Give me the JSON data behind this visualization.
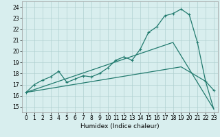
{
  "bg_color": "#d8eeee",
  "grid_color": "#b0d0d0",
  "line_color": "#217a6e",
  "xlim": [
    -0.5,
    23.5
  ],
  "ylim": [
    14.5,
    24.5
  ],
  "xticks": [
    0,
    1,
    2,
    3,
    4,
    5,
    6,
    7,
    8,
    9,
    10,
    11,
    12,
    13,
    14,
    15,
    16,
    17,
    18,
    19,
    20,
    21,
    22,
    23
  ],
  "yticks": [
    15,
    16,
    17,
    18,
    19,
    20,
    21,
    22,
    23,
    24
  ],
  "xlabel": "Humidex (Indice chaleur)",
  "curve1_x": [
    0,
    1,
    2,
    3,
    4,
    5,
    6,
    7,
    8,
    9,
    10,
    11,
    12,
    13,
    14,
    15,
    16,
    17,
    18,
    19,
    20,
    21,
    22,
    23
  ],
  "curve1_y": [
    16.3,
    17.0,
    17.4,
    17.7,
    18.2,
    17.2,
    17.5,
    17.8,
    17.7,
    18.0,
    18.5,
    19.2,
    19.5,
    19.2,
    20.2,
    21.7,
    22.2,
    23.2,
    23.4,
    23.8,
    23.3,
    20.8,
    17.3,
    16.5
  ],
  "line2_x": [
    0,
    18,
    23
  ],
  "line2_y": [
    16.3,
    20.8,
    14.8
  ],
  "line3_x": [
    0,
    19,
    22,
    23
  ],
  "line3_y": [
    16.3,
    18.6,
    17.3,
    14.8
  ]
}
